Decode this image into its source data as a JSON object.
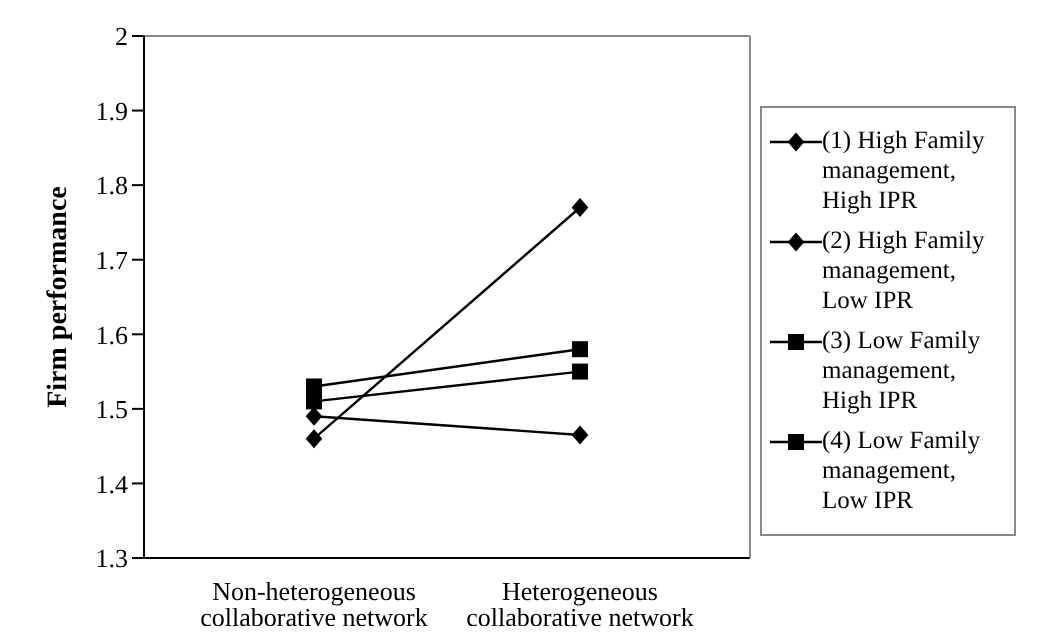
{
  "chart_data": {
    "type": "line",
    "ylabel": "Firm performance",
    "categories": [
      "Non-heterogeneous collaborative network",
      "Heterogeneous collaborative network"
    ],
    "series": [
      {
        "name": "(1) High Family management, High IPR",
        "color": "#000000",
        "marker": "diamond",
        "values": [
          1.46,
          1.77
        ]
      },
      {
        "name": "(2) High Family management, Low IPR",
        "color": "#000000",
        "marker": "diamond",
        "values": [
          1.49,
          1.465
        ]
      },
      {
        "name": "(3) Low Family management, High IPR",
        "color": "#000000",
        "marker": "square",
        "values": [
          1.53,
          1.58
        ]
      },
      {
        "name": "(4) Low Family management, Low IPR",
        "color": "#000000",
        "marker": "square",
        "values": [
          1.51,
          1.55
        ]
      }
    ],
    "ylim": [
      1.3,
      2
    ],
    "yticks": [
      1.3,
      1.4,
      1.5,
      1.6,
      1.7,
      1.8,
      1.9,
      2
    ],
    "legend": "right",
    "line_style": "solid"
  }
}
